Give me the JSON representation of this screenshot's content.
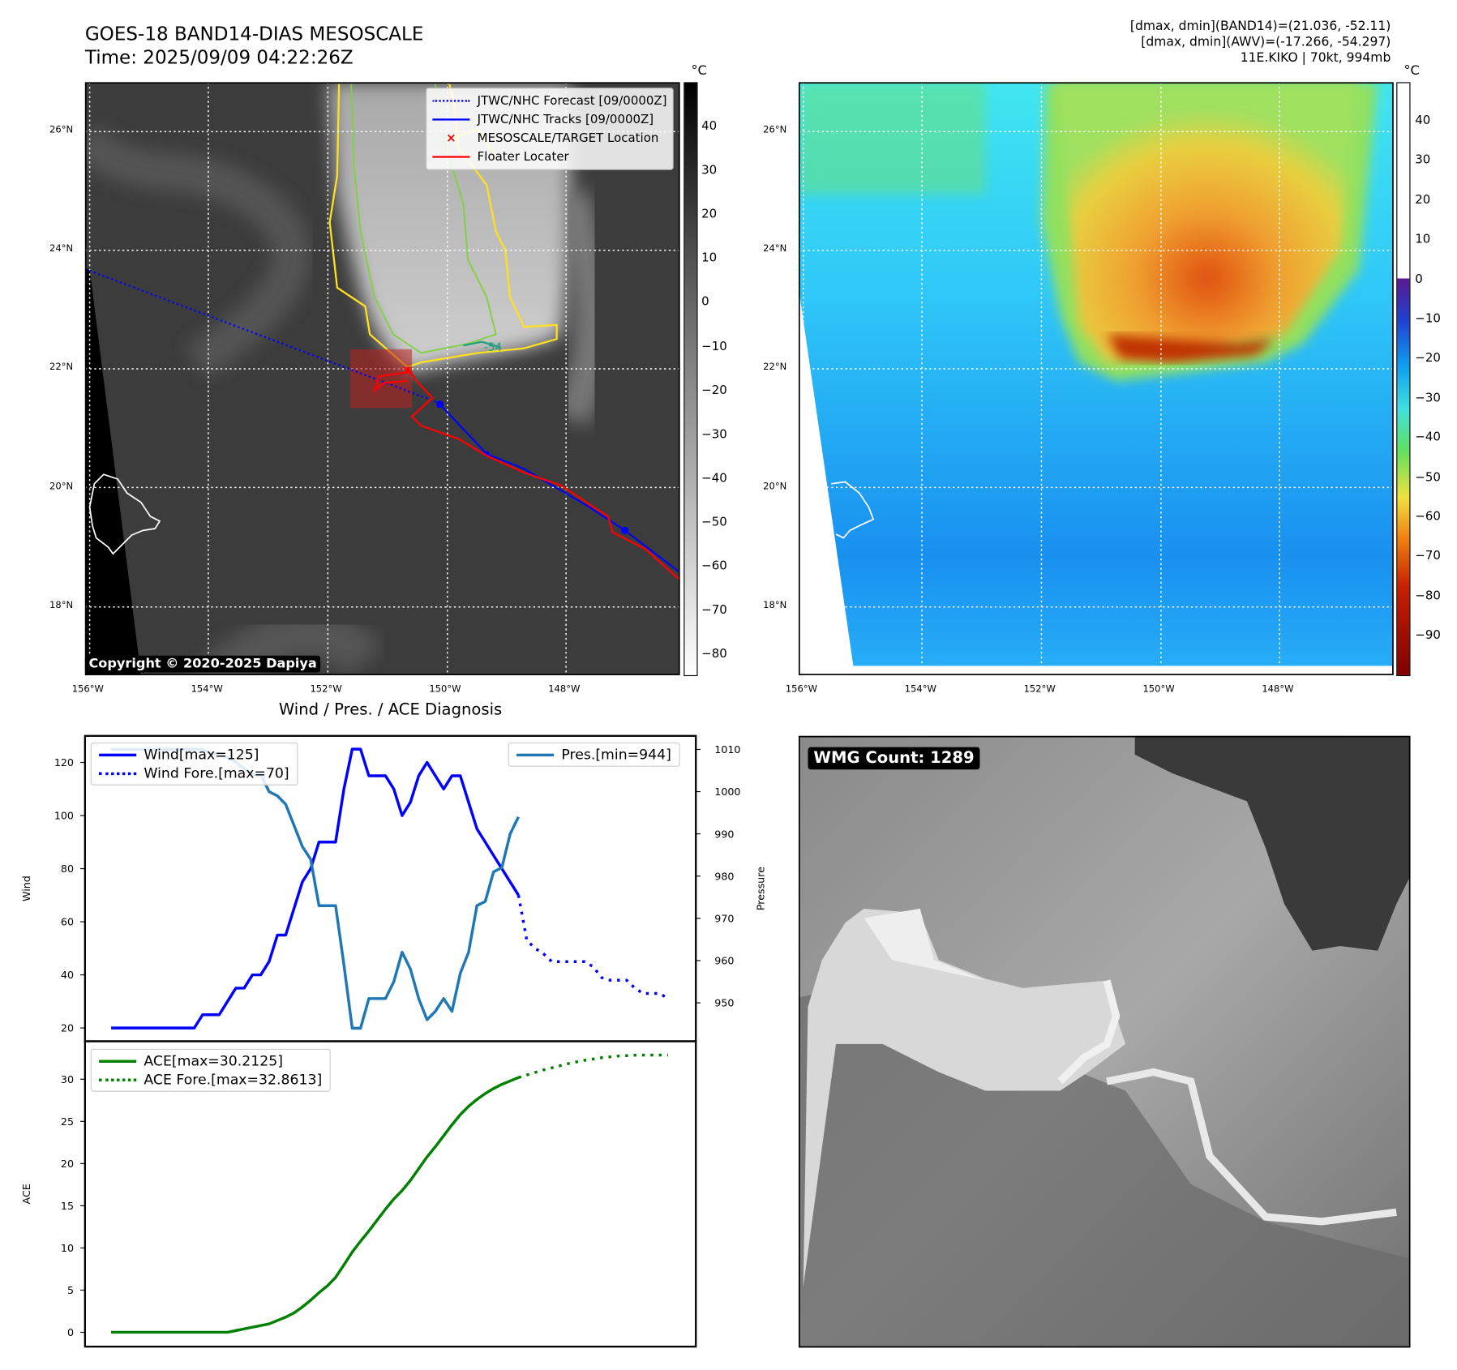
{
  "header": {
    "title": "GOES-18 BAND14-DIAS MESOSCALE",
    "time": "Time: 2025/09/09 04:22:26Z",
    "info": [
      "[dmax, dmin](BAND14)=(21.036, -52.11)",
      "[dmax, dmin](AWV)=(-17.266, -54.297)",
      "11E.KIKO | 70kt, 994mb"
    ]
  },
  "maps": {
    "lat_labels": [
      "26°N",
      "24°N",
      "22°N",
      "20°N",
      "18°N"
    ],
    "lon_labels": [
      "156°W",
      "154°W",
      "152°W",
      "150°W",
      "148°W"
    ],
    "copyright": "Copyright © 2020-2025 Dapiya",
    "contour_label": "-54",
    "legend": [
      {
        "label": "JTWC/NHC Forecast [09/0000Z]",
        "color": "#0000ff",
        "style": "dotted"
      },
      {
        "label": "JTWC/NHC Tracks [09/0000Z]",
        "color": "#0000ff",
        "style": "marker"
      },
      {
        "label": "MESOSCALE/TARGET Location",
        "color": "#ff0000",
        "style": "x"
      },
      {
        "label": "Floater Locater",
        "color": "#ff0000",
        "style": "solid"
      }
    ],
    "left_colorbar": {
      "unit": "°C",
      "ticks": [
        "40",
        "30",
        "20",
        "10",
        "0",
        "−10",
        "−20",
        "−30",
        "−40",
        "−50",
        "−60",
        "−70",
        "−80"
      ]
    },
    "right_colorbar": {
      "unit": "°C",
      "ticks": [
        "40",
        "30",
        "20",
        "10",
        "0",
        "−10",
        "−20",
        "−30",
        "−40",
        "−50",
        "−60",
        "−70",
        "−80",
        "−90"
      ]
    }
  },
  "wmg": {
    "label": "WMG Count: 1289"
  },
  "chart_data": {
    "type": "line",
    "title": "Wind / Pres. / ACE Diagnosis",
    "top": {
      "ylabel": "Wind",
      "y2label": "Pressure",
      "ylim": [
        15,
        130
      ],
      "y2lim": [
        940.9,
        1013.2
      ],
      "yticks": [
        20,
        40,
        60,
        80,
        100,
        120
      ],
      "y2ticks": [
        950,
        960,
        970,
        980,
        990,
        1000,
        1010
      ],
      "series": [
        {
          "name": "Wind[max=125]",
          "color": "#0000ff",
          "style": "solid",
          "start": 0,
          "values": [
            20,
            20,
            20,
            20,
            20,
            20,
            20,
            20,
            20,
            20,
            20,
            25,
            25,
            25,
            30,
            35,
            35,
            40,
            40,
            45,
            55,
            55,
            65,
            75,
            80,
            90,
            90,
            90,
            110,
            125,
            125,
            115,
            115,
            115,
            110,
            100,
            105,
            115,
            120,
            115,
            110,
            115,
            115,
            105,
            95,
            90,
            85,
            80,
            75,
            70
          ]
        },
        {
          "name": "Wind Fore.[max=70]",
          "color": "#0000ff",
          "style": "dotted",
          "start": 49,
          "values": [
            70,
            53,
            50,
            48,
            45,
            45,
            45,
            45,
            45,
            43,
            39,
            38,
            38,
            38,
            35,
            33,
            33,
            33,
            31
          ]
        },
        {
          "name": "Pres.[min=944]",
          "color": "#1f77b4",
          "style": "solid",
          "axis": "y2",
          "start": 0,
          "values": [
            1010,
            1010,
            1010,
            1010,
            1010,
            1010,
            1010,
            1010,
            1010,
            1010,
            1010,
            1010,
            1009,
            1009,
            1008,
            1007,
            1005.5,
            1004,
            1004,
            1000,
            999,
            997,
            992,
            987,
            984,
            973,
            973,
            973,
            959,
            944,
            944,
            951,
            951,
            951,
            955,
            962,
            958,
            951,
            946,
            948,
            951,
            948,
            957,
            962,
            973,
            974,
            981,
            982,
            990,
            994
          ]
        }
      ]
    },
    "bottom": {
      "ylabel": "ACE",
      "ylim": [
        -1.7,
        34.5
      ],
      "yticks": [
        0,
        5,
        10,
        15,
        20,
        25,
        30
      ],
      "series": [
        {
          "name": "ACE[max=30.2125]",
          "color": "#008000",
          "style": "solid",
          "start": 0,
          "values": [
            0,
            0,
            0,
            0,
            0,
            0,
            0,
            0,
            0,
            0,
            0,
            0,
            0,
            0,
            0,
            0.2,
            0.4,
            0.6,
            0.8,
            1.0,
            1.4,
            1.8,
            2.3,
            3,
            3.8,
            4.7,
            5.5,
            6.5,
            8,
            9.5,
            10.8,
            12,
            13.3,
            14.6,
            15.8,
            16.8,
            18,
            19.4,
            20.8,
            22,
            23.3,
            24.6,
            25.8,
            26.8,
            27.6,
            28.3,
            28.9,
            29.4,
            29.8,
            30.21
          ]
        },
        {
          "name": "ACE Fore.[max=32.8613]",
          "color": "#008000",
          "style": "dotted",
          "start": 49,
          "values": [
            30.21,
            30.5,
            30.8,
            31.1,
            31.35,
            31.6,
            31.85,
            32.05,
            32.25,
            32.4,
            32.55,
            32.65,
            32.75,
            32.8,
            32.85,
            32.86,
            32.86,
            32.86,
            32.86
          ]
        }
      ]
    }
  }
}
